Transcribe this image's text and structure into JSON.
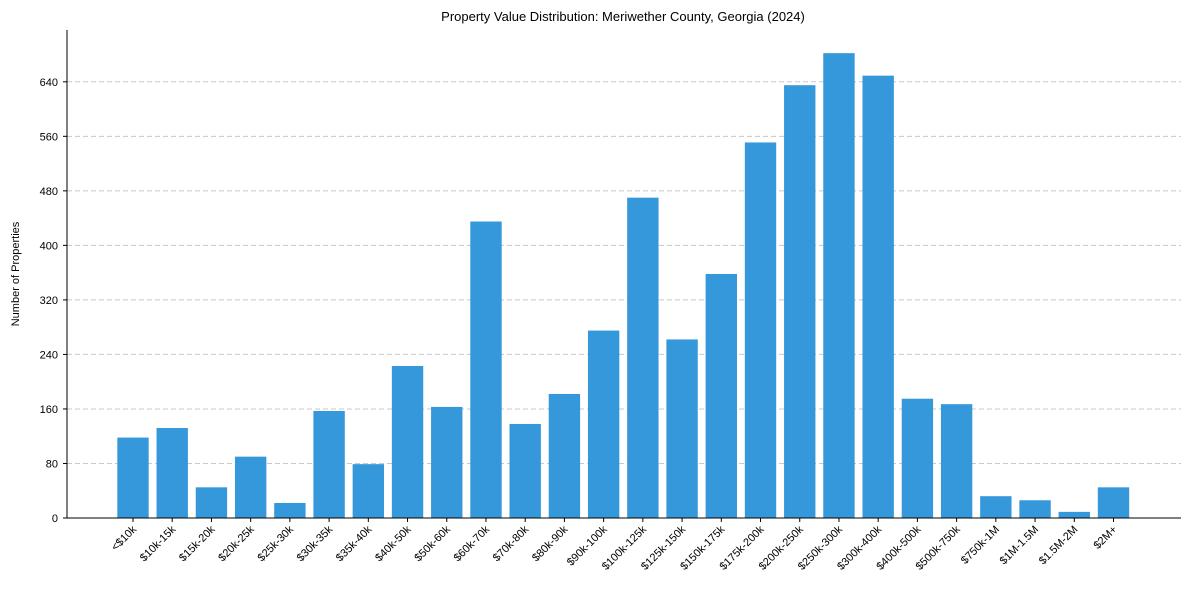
{
  "chart_data": {
    "type": "bar",
    "title": "Property Value Distribution: Meriwether County, Georgia (2024)",
    "xlabel": "",
    "ylabel": "Number of Properties",
    "categories": [
      "<$10k",
      "$10k-15k",
      "$15k-20k",
      "$20k-25k",
      "$25k-30k",
      "$30k-35k",
      "$35k-40k",
      "$40k-50k",
      "$50k-60k",
      "$60k-70k",
      "$70k-80k",
      "$80k-90k",
      "$90k-100k",
      "$100k-125k",
      "$125k-150k",
      "$150k-175k",
      "$175k-200k",
      "$200k-250k",
      "$250k-300k",
      "$300k-400k",
      "$400k-500k",
      "$500k-750k",
      "$750k-1M",
      "$1M-1.5M",
      "$1.5M-2M",
      "$2M+"
    ],
    "values": [
      118,
      132,
      45,
      90,
      22,
      157,
      79,
      223,
      163,
      435,
      138,
      182,
      275,
      470,
      262,
      358,
      551,
      635,
      682,
      649,
      175,
      167,
      32,
      26,
      9,
      45
    ],
    "yticks": [
      0,
      80,
      160,
      240,
      320,
      400,
      480,
      560,
      640
    ],
    "ylim": [
      0,
      716
    ],
    "grid": "horizontal",
    "color": "#3498db"
  }
}
